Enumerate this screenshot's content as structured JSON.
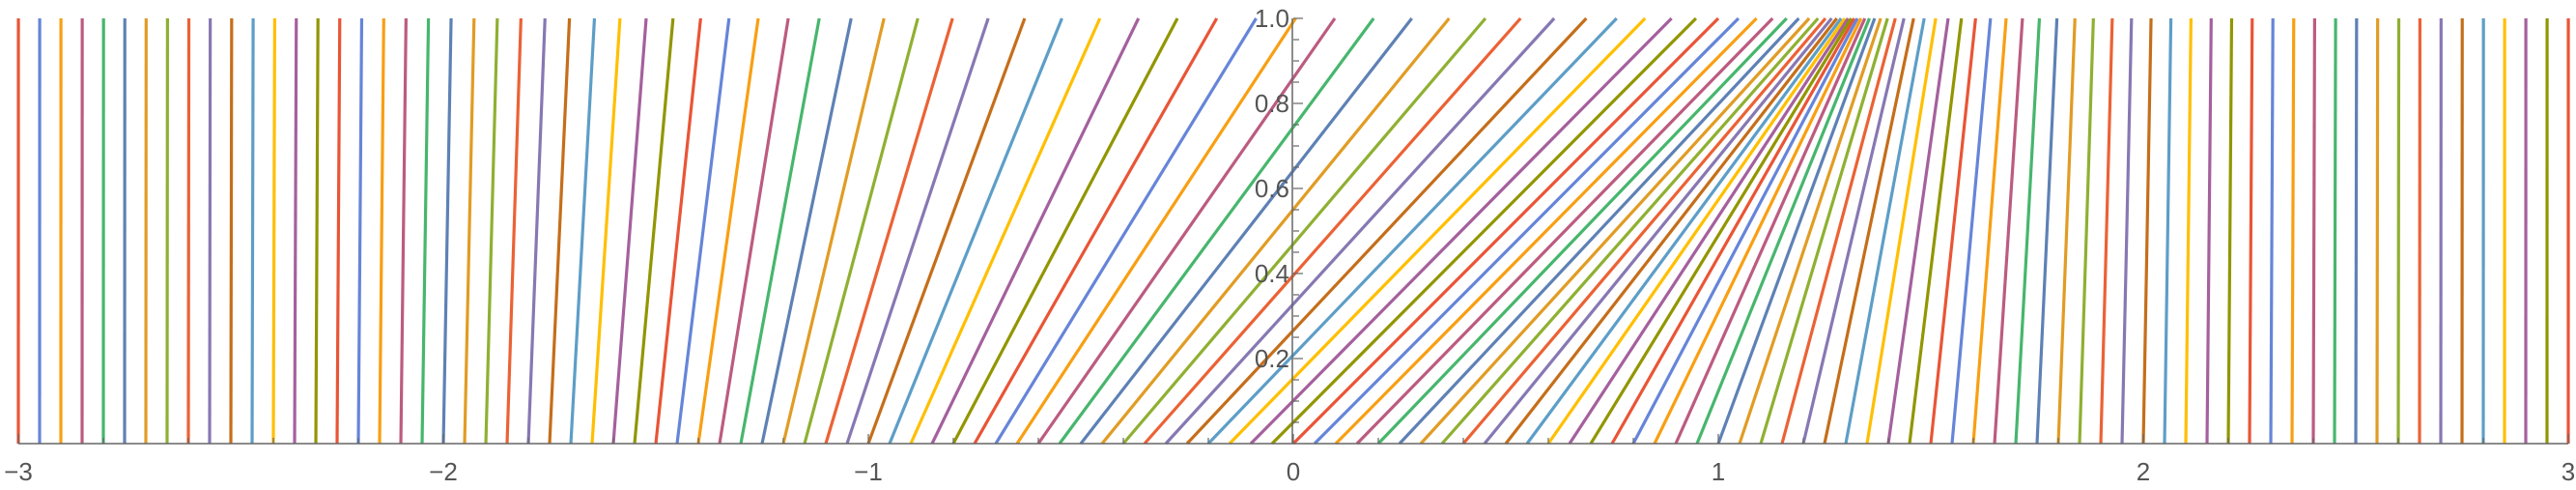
{
  "chart_data": {
    "type": "line",
    "title": "",
    "xlabel": "",
    "ylabel": "",
    "xlim": [
      -3,
      3
    ],
    "ylim": [
      0,
      1
    ],
    "grid": false,
    "legend": "none",
    "x_ticks": [
      "−3",
      "−2",
      "−1",
      "0",
      "1",
      "2",
      "3"
    ],
    "x_tick_values": [
      -3,
      -2,
      -1,
      0,
      1,
      2,
      3
    ],
    "y_ticks": [
      "0.2",
      "0.4",
      "0.6",
      "0.8",
      "1.0"
    ],
    "y_tick_values": [
      0.2,
      0.4,
      0.6,
      0.8,
      1.0
    ],
    "colors": [
      "#E95536",
      "#6685D9",
      "#F89F13",
      "#BC5B80",
      "#47B66D",
      "#5E81B5",
      "#E19C24",
      "#8FB032",
      "#EB6235",
      "#8778B3",
      "#C56E1A",
      "#5D9EC7",
      "#FFBF00",
      "#A5609D",
      "#929600"
    ],
    "series_description": "each line runs from (x0, 0) to (x0 + speed, 1)",
    "x0": [
      -3,
      -2.95,
      -2.9,
      -2.85,
      -2.8,
      -2.75,
      -2.7,
      -2.65,
      -2.6,
      -2.55,
      -2.5,
      -2.45,
      -2.4,
      -2.35,
      -2.3,
      -2.25,
      -2.2,
      -2.15,
      -2.1,
      -2.05,
      -2,
      -1.95,
      -1.9,
      -1.85,
      -1.8,
      -1.75,
      -1.7,
      -1.65,
      -1.6,
      -1.55,
      -1.5,
      -1.45,
      -1.4,
      -1.35,
      -1.3,
      -1.25,
      -1.2,
      -1.15,
      -1.1,
      -1.05,
      -1,
      -0.95,
      -0.9,
      -0.85,
      -0.8,
      -0.75,
      -0.7,
      -0.65,
      -0.6,
      -0.55,
      -0.5,
      -0.45,
      -0.4,
      -0.35,
      -0.3,
      -0.25,
      -0.2,
      -0.15,
      -0.1,
      -0.05,
      0,
      0.05,
      0.1,
      0.15,
      0.2,
      0.25,
      0.3,
      0.35,
      0.4,
      0.45,
      0.5,
      0.55,
      0.6,
      0.65,
      0.7,
      0.75,
      0.8,
      0.85,
      0.9,
      0.95,
      1,
      1.05,
      1.1,
      1.15,
      1.2,
      1.25,
      1.3,
      1.35,
      1.4,
      1.45,
      1.5,
      1.55,
      1.6,
      1.65,
      1.7,
      1.75,
      1.8,
      1.85,
      1.9,
      1.95,
      2,
      2.05,
      2.1,
      2.15,
      2.2,
      2.25,
      2.3,
      2.35,
      2.4,
      2.45,
      2.5,
      2.55,
      2.6,
      2.65,
      2.7,
      2.75,
      2.8,
      2.85,
      2.9,
      2.95,
      3
    ],
    "speed": [
      0.0001,
      0.0002,
      0.0002,
      0.0003,
      0.0004,
      0.0005,
      0.0007,
      0.0009,
      0.0012,
      0.0015,
      0.0019,
      0.0025,
      0.0032,
      0.004,
      0.005,
      0.0063,
      0.0079,
      0.0098,
      0.0122,
      0.015,
      0.0183,
      0.0223,
      0.027,
      0.0326,
      0.0392,
      0.0468,
      0.0556,
      0.0657,
      0.0773,
      0.0905,
      0.1054,
      0.1222,
      0.1409,
      0.1616,
      0.1845,
      0.2096,
      0.2369,
      0.2665,
      0.2982,
      0.3321,
      0.3679,
      0.4056,
      0.4449,
      0.4857,
      0.5273,
      0.5698,
      0.6126,
      0.6554,
      0.6977,
      0.739,
      0.7788,
      0.8167,
      0.8521,
      0.8847,
      0.9139,
      0.9394,
      0.9608,
      0.9778,
      0.99,
      0.9975,
      1.0,
      0.9975,
      0.99,
      0.9778,
      0.9608,
      0.9394,
      0.9139,
      0.8847,
      0.8521,
      0.8167,
      0.7788,
      0.739,
      0.6977,
      0.6554,
      0.6126,
      0.5698,
      0.5273,
      0.4857,
      0.4449,
      0.4056,
      0.3679,
      0.3321,
      0.2982,
      0.2665,
      0.2369,
      0.2096,
      0.1845,
      0.1616,
      0.1409,
      0.1222,
      0.1054,
      0.0905,
      0.0773,
      0.0657,
      0.0556,
      0.0468,
      0.0392,
      0.0326,
      0.027,
      0.0223,
      0.0183,
      0.015,
      0.0122,
      0.0098,
      0.0079,
      0.0063,
      0.005,
      0.004,
      0.0032,
      0.0025,
      0.0019,
      0.0015,
      0.0012,
      0.0009,
      0.0007,
      0.0005,
      0.0004,
      0.0003,
      0.0002,
      0.0002,
      0.0001
    ]
  }
}
